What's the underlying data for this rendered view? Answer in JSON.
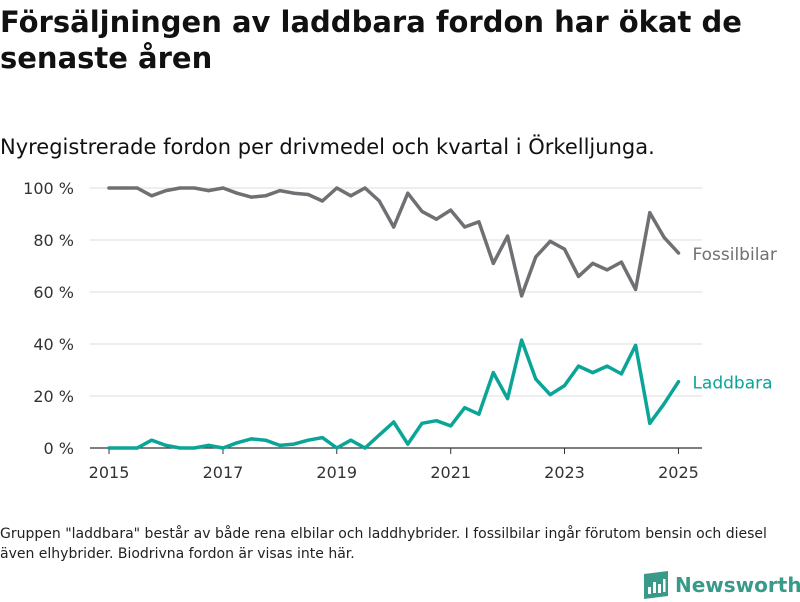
{
  "title": "Försäljningen av laddbara fordon har ökat de senaste åren",
  "subtitle": "Nyregistrerade fordon per drivmedel och kvartal i Örkelljunga.",
  "footnote": "Gruppen \"laddbara\" består av både rena elbilar och laddhybrider. I fossilbilar ingår förutom bensin och diesel även elhybrider. Biodrivna fordon är visas inte här.",
  "brand": {
    "name": "Newsworthy",
    "icon": "newsworthy-logo-icon",
    "color": "#3a9a8a"
  },
  "chart_data": {
    "type": "line",
    "x_type": "date",
    "title": "",
    "xlabel": "",
    "ylabel": "",
    "xlim": [
      "2014-09-01",
      "2025-06-01"
    ],
    "ylim": [
      0,
      100
    ],
    "x_ticks": [
      "2015",
      "2017",
      "2019",
      "2021",
      "2023",
      "2025"
    ],
    "y_ticks": [
      0,
      20,
      40,
      60,
      80,
      100
    ],
    "y_tick_labels": [
      "0 %",
      "20 %",
      "40 %",
      "60 %",
      "80 %",
      "100 %"
    ],
    "grid": "horizontal",
    "legend": "end-of-line labels",
    "x": [
      "2015-01-01",
      "2015-04-01",
      "2015-07-01",
      "2015-10-01",
      "2016-01-01",
      "2016-04-01",
      "2016-07-01",
      "2016-10-01",
      "2017-01-01",
      "2017-04-01",
      "2017-07-01",
      "2017-10-01",
      "2018-01-01",
      "2018-04-01",
      "2018-07-01",
      "2018-10-01",
      "2019-01-01",
      "2019-04-01",
      "2019-07-01",
      "2019-10-01",
      "2020-01-01",
      "2020-04-01",
      "2020-07-01",
      "2020-10-01",
      "2021-01-01",
      "2021-04-01",
      "2021-07-01",
      "2021-10-01",
      "2022-01-01",
      "2022-04-01",
      "2022-07-01",
      "2022-10-01",
      "2023-01-01",
      "2023-04-01",
      "2023-07-01",
      "2023-10-01",
      "2024-01-01",
      "2024-04-01",
      "2024-07-01",
      "2024-10-01",
      "2025-01-01"
    ],
    "series": [
      {
        "name": "Fossilbilar",
        "color": "#707074",
        "values": [
          100,
          100,
          100,
          97,
          99,
          100,
          100,
          99,
          100,
          98,
          96.5,
          97,
          99,
          98,
          97.5,
          95,
          100,
          97,
          100,
          95,
          85,
          98,
          91,
          88,
          91.5,
          85,
          87,
          71,
          81.5,
          58.5,
          73.5,
          79.5,
          76.5,
          66,
          71,
          68.5,
          71.5,
          61,
          90.5,
          81,
          75
        ]
      },
      {
        "name": "Laddbara",
        "color": "#0aa597",
        "values": [
          0,
          0,
          0,
          3,
          1,
          0,
          0,
          1,
          0,
          2,
          3.5,
          3,
          1,
          1.5,
          3,
          4,
          0,
          3,
          0,
          5,
          10,
          1.5,
          9.5,
          10.5,
          8.5,
          15.5,
          13,
          29,
          19,
          41.5,
          26.5,
          20.5,
          24,
          31.5,
          29,
          31.5,
          28.5,
          39.5,
          9.5,
          17,
          25.5
        ]
      }
    ]
  }
}
